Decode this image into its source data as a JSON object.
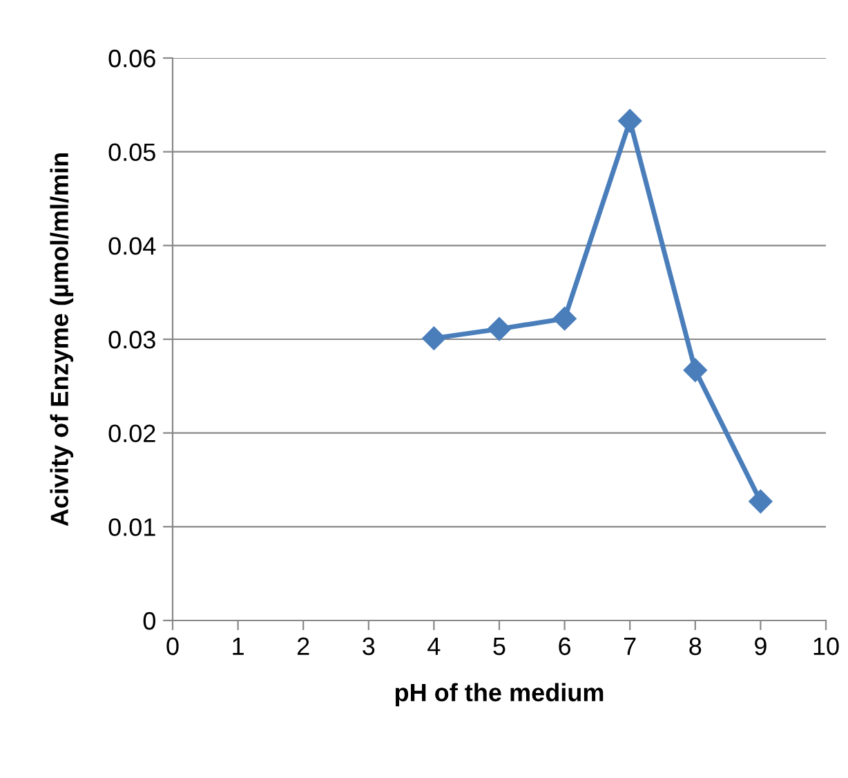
{
  "chart_data": {
    "type": "line",
    "xlabel": "pH of the medium",
    "ylabel": "Acivity of Enzyme (µmol/ml/min",
    "x": [
      4,
      5,
      6,
      7,
      8,
      9
    ],
    "series": [
      {
        "color": "#4a7ebb",
        "values": [
          0.0301,
          0.0311,
          0.0322,
          0.0533,
          0.0267,
          0.0127
        ]
      }
    ],
    "xlim": [
      0,
      10
    ],
    "xticks": [
      0,
      1,
      2,
      3,
      4,
      5,
      6,
      7,
      8,
      9,
      10
    ],
    "ylim": [
      0,
      0.06
    ],
    "yticks": [
      {
        "value": 0,
        "label": "0"
      },
      {
        "value": 0.01,
        "label": "0.01"
      },
      {
        "value": 0.02,
        "label": "0.02"
      },
      {
        "value": 0.03,
        "label": "0.03"
      },
      {
        "value": 0.04,
        "label": "0.04"
      },
      {
        "value": 0.05,
        "label": "0.05"
      },
      {
        "value": 0.06,
        "label": "0.06"
      }
    ],
    "grid": "y",
    "marker": "diamond",
    "line_style": "solid",
    "legend": false
  }
}
